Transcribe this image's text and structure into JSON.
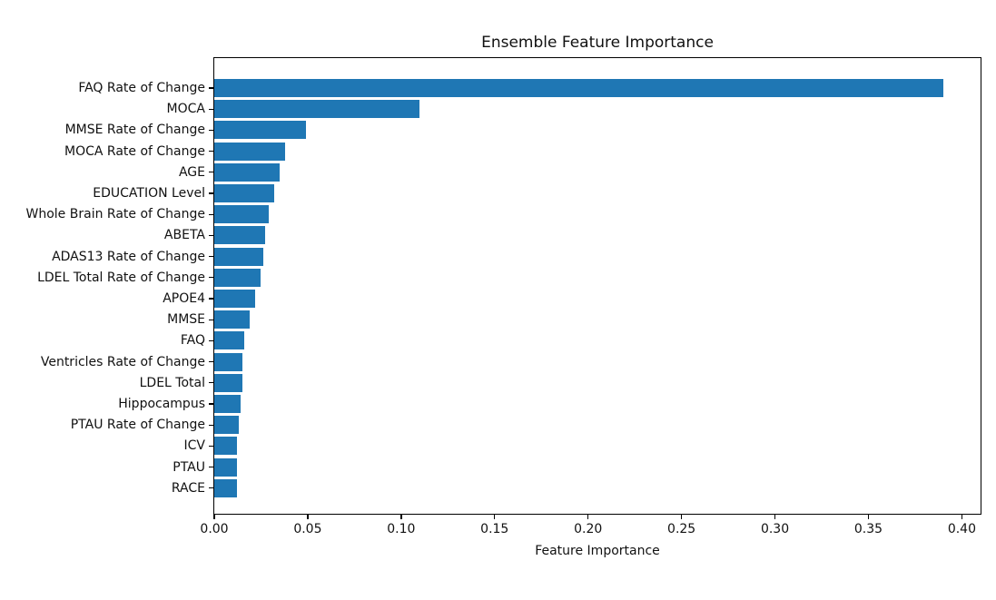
{
  "chart_data": {
    "type": "barh",
    "title": "Ensemble Feature Importance",
    "xlabel": "Feature Importance",
    "ylabel": "",
    "categories": [
      "FAQ Rate of Change",
      "MOCA",
      "MMSE Rate of Change",
      "MOCA Rate of Change",
      "AGE",
      "EDUCATION Level",
      "Whole Brain Rate of Change",
      "ABETA",
      "ADAS13 Rate of Change",
      "LDEL Total Rate of Change",
      "APOE4",
      "MMSE",
      "FAQ",
      "Ventricles Rate of Change",
      "LDEL Total",
      "Hippocampus",
      "PTAU Rate of Change",
      "ICV",
      "PTAU",
      "RACE"
    ],
    "values": [
      0.39,
      0.11,
      0.049,
      0.038,
      0.035,
      0.032,
      0.029,
      0.027,
      0.026,
      0.025,
      0.022,
      0.019,
      0.016,
      0.015,
      0.015,
      0.014,
      0.013,
      0.012,
      0.012,
      0.012
    ],
    "xlim": [
      0,
      0.41
    ],
    "xticks": [
      0.0,
      0.05,
      0.1,
      0.15,
      0.2,
      0.25,
      0.3,
      0.35,
      0.4
    ],
    "xtick_labels": [
      "0.00",
      "0.05",
      "0.10",
      "0.15",
      "0.20",
      "0.25",
      "0.30",
      "0.35",
      "0.40"
    ],
    "bar_color": "#1f77b4",
    "axis_color": "#000000",
    "grid": false,
    "legend": "none",
    "orientation": "horizontal"
  }
}
